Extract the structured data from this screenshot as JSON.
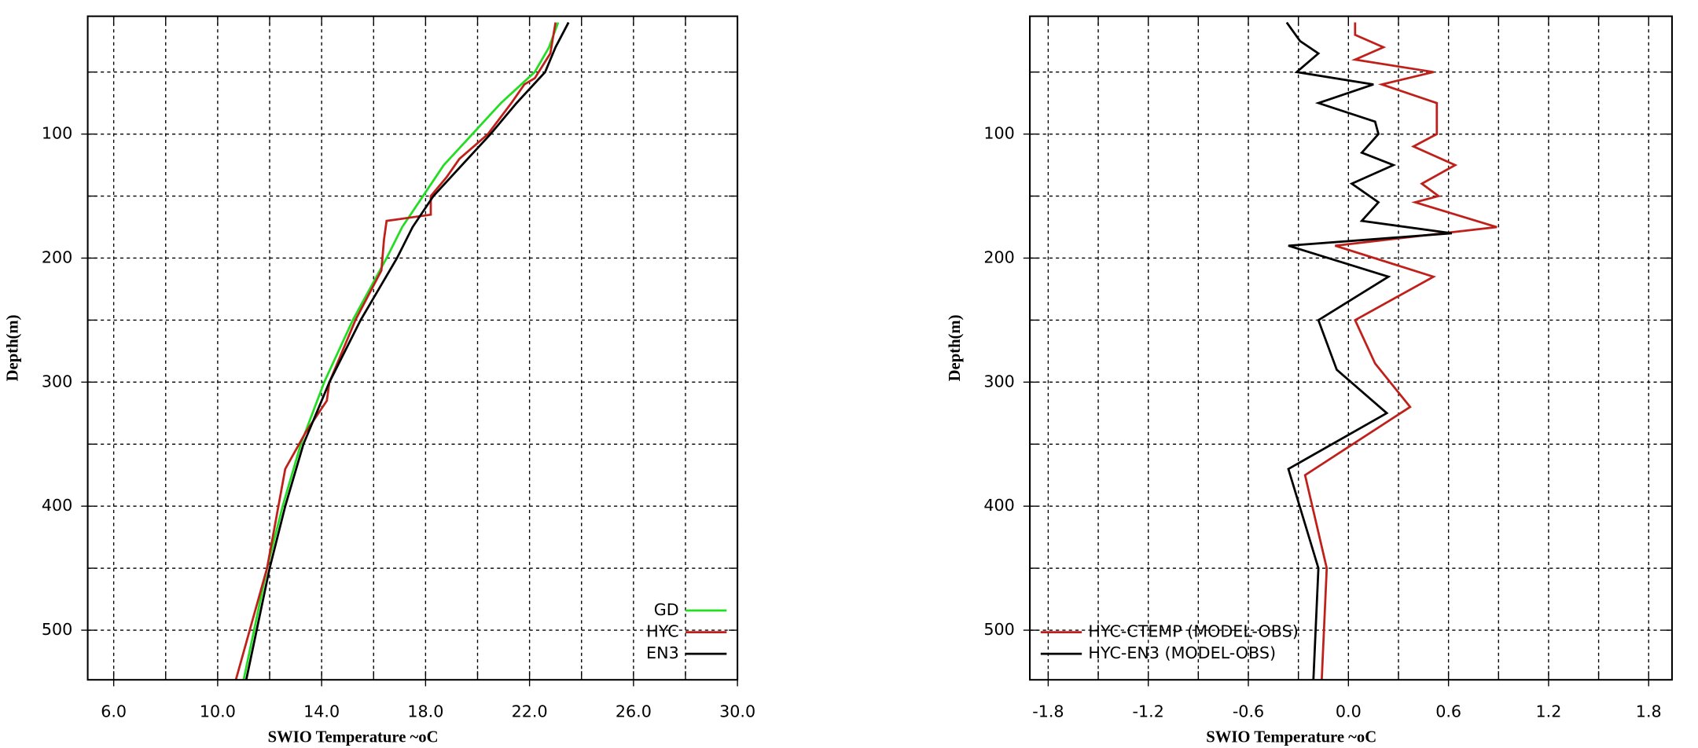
{
  "chart_data": [
    {
      "type": "line",
      "xlabel": "SWIO Temperature ~oC",
      "ylabel": "Depth(m)",
      "xlim": [
        5,
        30
      ],
      "ylim": [
        540,
        5
      ],
      "y_inverted": true,
      "grid": true,
      "legend": "lower right",
      "xticks": [
        {
          "value": 6,
          "label": "6.0"
        },
        {
          "value": 10,
          "label": "10.0"
        },
        {
          "value": 14,
          "label": "14.0"
        },
        {
          "value": 18,
          "label": "18.0"
        },
        {
          "value": 22,
          "label": "22.0"
        },
        {
          "value": 26,
          "label": "26.0"
        },
        {
          "value": 30,
          "label": "30.0"
        }
      ],
      "xgrid": [
        6,
        8,
        10,
        12,
        14,
        16,
        18,
        20,
        22,
        24,
        26,
        28,
        30
      ],
      "yticks": [
        100,
        200,
        300,
        400,
        500
      ],
      "ygrid": [
        50,
        100,
        150,
        200,
        250,
        300,
        350,
        400,
        450,
        500
      ],
      "series": [
        {
          "name": "GD",
          "color": "#22dd22",
          "depth": [
            10,
            30,
            50,
            75,
            100,
            125,
            150,
            175,
            200,
            250,
            300,
            350,
            400,
            450,
            500,
            540
          ],
          "values": [
            23.1,
            22.75,
            22.2,
            20.9,
            19.8,
            18.7,
            17.9,
            17.1,
            16.5,
            15.2,
            14.1,
            13.2,
            12.5,
            11.9,
            11.4,
            11.0
          ]
        },
        {
          "name": "HYC",
          "color": "#c0201a",
          "depth": [
            10,
            35,
            55,
            60,
            75,
            100,
            120,
            135,
            150,
            165,
            170,
            185,
            210,
            250,
            300,
            315,
            340,
            370,
            450,
            540
          ],
          "values": [
            23.0,
            22.8,
            22.2,
            21.8,
            21.3,
            20.4,
            19.3,
            18.8,
            18.2,
            18.2,
            16.5,
            16.4,
            16.3,
            15.3,
            14.3,
            14.2,
            13.4,
            12.6,
            11.9,
            10.7
          ]
        },
        {
          "name": "EN3",
          "color": "#000000",
          "depth": [
            10,
            30,
            50,
            75,
            100,
            125,
            150,
            175,
            200,
            250,
            300,
            350,
            400,
            450,
            500,
            540
          ],
          "values": [
            23.5,
            23.0,
            22.6,
            21.5,
            20.5,
            19.4,
            18.3,
            17.5,
            16.9,
            15.5,
            14.3,
            13.3,
            12.6,
            12.0,
            11.5,
            11.1
          ]
        }
      ]
    },
    {
      "type": "line",
      "xlabel": "SWIO Temperature ~oC",
      "ylabel": "Depth(m)",
      "xlim": [
        -1.91,
        1.94
      ],
      "ylim": [
        540,
        5
      ],
      "y_inverted": true,
      "grid": true,
      "legend": "lower left",
      "xticks": [
        -1.8,
        -1.2,
        -0.6,
        {
          "value": 0,
          "label": "0.0"
        },
        0.6,
        1.2,
        1.8
      ],
      "xgrid": [
        -1.8,
        -1.5,
        -1.2,
        -0.9,
        -0.6,
        -0.3,
        0,
        0.3,
        0.6,
        0.9,
        1.2,
        1.5,
        1.8
      ],
      "yticks": [
        100,
        200,
        300,
        400,
        500
      ],
      "ygrid": [
        50,
        100,
        150,
        200,
        250,
        300,
        350,
        400,
        450,
        500
      ],
      "series": [
        {
          "name": "HYC-CTEMP (MODEL-OBS)",
          "color": "#c0201a",
          "depth": [
            10,
            20,
            30,
            40,
            50,
            60,
            75,
            100,
            110,
            125,
            140,
            150,
            155,
            175,
            190,
            215,
            250,
            285,
            320,
            375,
            450,
            540
          ],
          "values": [
            0.04,
            0.04,
            0.21,
            0.04,
            0.51,
            0.2,
            0.53,
            0.53,
            0.39,
            0.64,
            0.44,
            0.54,
            0.4,
            0.89,
            -0.08,
            0.51,
            0.04,
            0.16,
            0.37,
            -0.26,
            -0.13,
            -0.16
          ]
        },
        {
          "name": "HYC-EN3 (MODEL-OBS)",
          "color": "#000000",
          "depth": [
            10,
            25,
            35,
            50,
            60,
            75,
            90,
            100,
            115,
            125,
            140,
            155,
            170,
            180,
            190,
            215,
            250,
            290,
            325,
            370,
            450,
            540
          ],
          "values": [
            -0.37,
            -0.29,
            -0.18,
            -0.31,
            0.15,
            -0.18,
            0.16,
            0.18,
            0.08,
            0.27,
            0.02,
            0.18,
            0.08,
            0.62,
            -0.36,
            0.24,
            -0.18,
            -0.07,
            0.23,
            -0.36,
            -0.18,
            -0.21
          ]
        }
      ]
    }
  ]
}
